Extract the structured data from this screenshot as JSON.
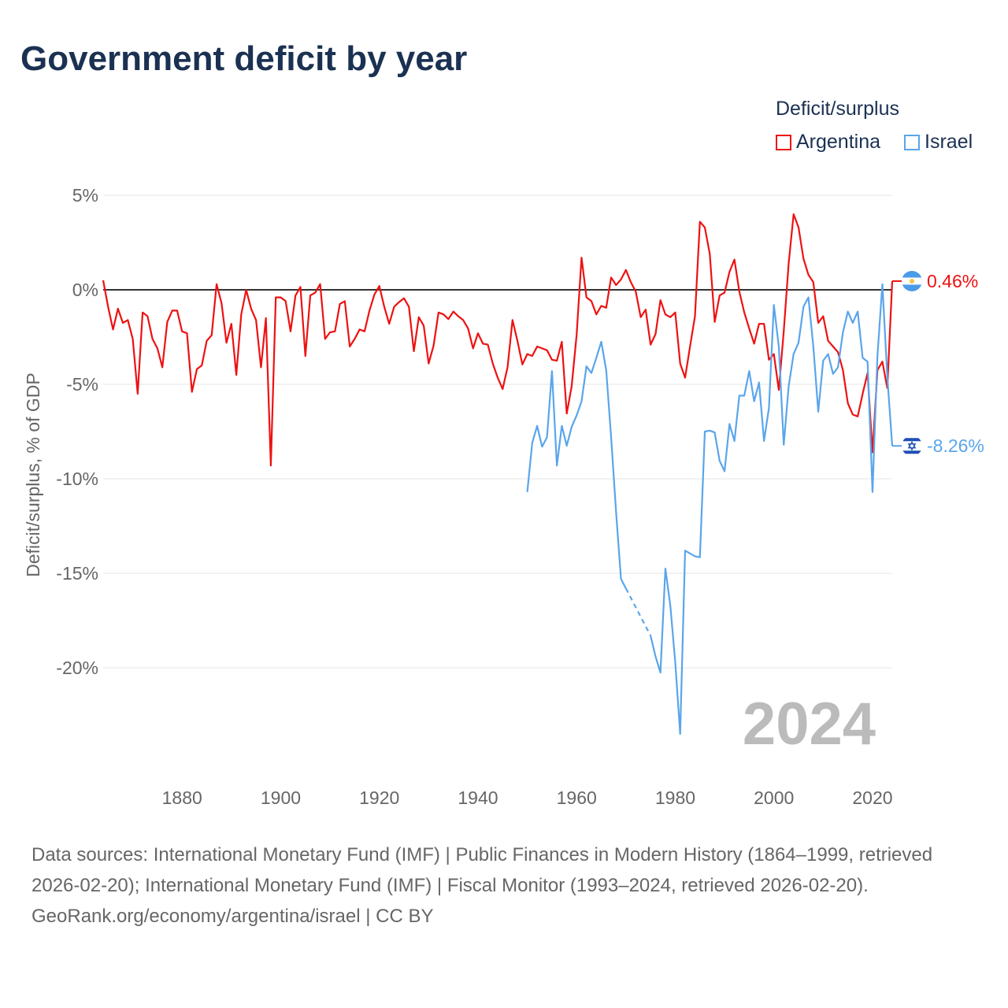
{
  "title": "Government deficit by year",
  "legend": {
    "title": "Deficit/surplus",
    "items": [
      {
        "name": "Argentina",
        "color": "#ee1111"
      },
      {
        "name": "Israel",
        "color": "#5aa5eb"
      }
    ]
  },
  "year_label": "2024",
  "footer": {
    "sources": "Data sources: International Monetary Fund (IMF) | Public Finances in Modern History (1864–1999, retrieved 2026-02-20); International Monetary Fund (IMF) | Fiscal Monitor (1993–2024, retrieved 2026-02-20).",
    "credit": "GeoRank.org/economy/argentina/israel | CC BY"
  },
  "end_labels": {
    "argentina": "0.46%",
    "israel": "-8.26%"
  },
  "icons": {
    "argentina": "argentina-flag-icon",
    "israel": "israel-flag-icon"
  },
  "chart_data": {
    "type": "line",
    "title": "Government deficit by year",
    "xlabel": "",
    "ylabel": "Deficit/surplus, % of GDP",
    "xlim": [
      1864,
      2024
    ],
    "ylim": [
      -25,
      5
    ],
    "xticks": [
      1880,
      1900,
      1920,
      1940,
      1960,
      1980,
      2000,
      2020
    ],
    "xtick_labels": [
      "1880",
      "1900",
      "1920",
      "1940",
      "1960",
      "1980",
      "2000",
      "2020"
    ],
    "yticks": [
      5,
      0,
      -5,
      -10,
      -15,
      -20
    ],
    "ytick_labels": [
      "5%",
      "0%",
      "-5%",
      "-10%",
      "-15%",
      "-20%"
    ],
    "x_start": 1864,
    "series": [
      {
        "name": "Argentina",
        "color": "#ee1111",
        "start": 1864,
        "values": [
          0.5,
          -0.9,
          -2.1,
          -1.0,
          -1.75,
          -1.6,
          -2.6,
          -5.5,
          -1.2,
          -1.4,
          -2.6,
          -3.1,
          -4.1,
          -1.7,
          -1.1,
          -1.1,
          -2.2,
          -2.3,
          -5.4,
          -4.2,
          -4.0,
          -2.7,
          -2.4,
          0.3,
          -0.7,
          -2.8,
          -1.8,
          -4.5,
          -1.3,
          0.0,
          -1.0,
          -1.6,
          -4.1,
          -1.5,
          -9.3,
          -0.4,
          -0.4,
          -0.6,
          -2.2,
          -0.3,
          0.15,
          -3.5,
          -0.3,
          -0.15,
          0.3,
          -2.6,
          -2.25,
          -2.2,
          -0.75,
          -0.6,
          -3.0,
          -2.6,
          -2.1,
          -2.2,
          -1.1,
          -0.25,
          0.2,
          -0.9,
          -1.8,
          -0.9,
          -0.65,
          -0.45,
          -0.9,
          -3.25,
          -1.45,
          -1.9,
          -3.9,
          -2.95,
          -1.2,
          -1.3,
          -1.55,
          -1.15,
          -1.4,
          -1.6,
          -2.05,
          -3.1,
          -2.3,
          -2.85,
          -2.9,
          -3.9,
          -4.65,
          -5.25,
          -4.1,
          -1.6,
          -2.7,
          -3.95,
          -3.4,
          -3.5,
          -3.0,
          -3.1,
          -3.2,
          -3.7,
          -3.75,
          -2.75,
          -6.55,
          -5.1,
          -2.4,
          1.7,
          -0.4,
          -0.6,
          -1.3,
          -0.85,
          -0.95,
          0.65,
          0.25,
          0.55,
          1.05,
          0.4,
          -0.1,
          -1.45,
          -1.05,
          -2.9,
          -2.35,
          -0.55,
          -1.3,
          -1.45,
          -1.2,
          -3.9,
          -4.65,
          -3.0,
          -1.4,
          3.6,
          3.3,
          1.9,
          -1.7,
          -0.3,
          -0.15,
          0.95,
          1.6,
          -0.1,
          -1.2,
          -2.05,
          -2.85,
          -1.8,
          -1.8,
          -3.7,
          -3.4,
          -5.3,
          -2.2,
          1.4,
          4.0,
          3.3,
          1.65,
          0.8,
          0.4,
          -1.75,
          -1.4,
          -2.7,
          -3.0,
          -3.3,
          -4.25,
          -6.0,
          -6.6,
          -6.7,
          -5.5,
          -4.4,
          -8.6,
          -4.25,
          -3.8,
          -5.2,
          0.46
        ]
      },
      {
        "name": "Israel",
        "color": "#5aa5eb",
        "start": 1950,
        "values": [
          -10.7,
          -8.1,
          -7.2,
          -8.3,
          -7.8,
          -4.3,
          -9.3,
          -7.2,
          -8.25,
          -7.25,
          -6.65,
          -5.9,
          -4.05,
          -4.4,
          -3.6,
          -2.75,
          -4.25,
          -7.8,
          -11.75,
          -15.3,
          -15.8,
          null,
          null,
          null,
          null,
          -18.3,
          -19.4,
          -20.25,
          -14.75,
          -16.7,
          -19.7,
          -23.5,
          -13.8,
          -13.95,
          -14.1,
          -14.15,
          -7.5,
          -7.45,
          -7.55,
          -9.05,
          -9.6,
          -7.1,
          -8.0,
          -5.6,
          -5.6,
          -4.3,
          -5.9,
          -4.9,
          -8.0,
          -6.25,
          -0.8,
          -3.0,
          -8.2,
          -5.1,
          -3.4,
          -2.8,
          -0.9,
          -0.4,
          -3.0,
          -6.45,
          -3.75,
          -3.4,
          -4.45,
          -4.1,
          -2.25,
          -1.15,
          -1.75,
          -1.15,
          -3.6,
          -3.8,
          -10.7,
          -3.5,
          0.3,
          -4.6,
          -8.26
        ]
      }
    ]
  }
}
